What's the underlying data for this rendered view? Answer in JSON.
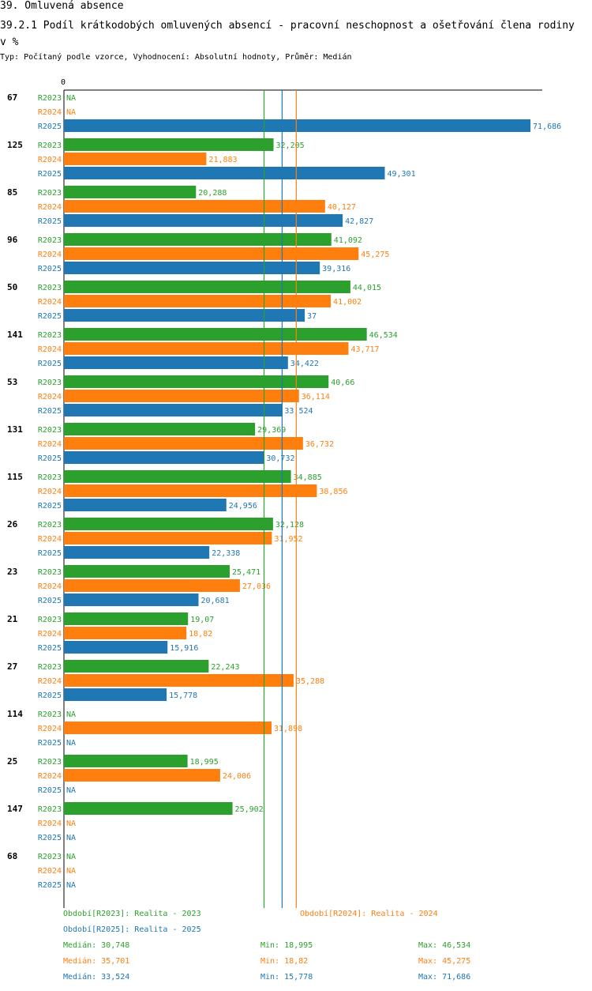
{
  "section_title": "39. Omluvená absence",
  "chart_title": "39.2.1 Podíl krátkodobých omluvených absencí -  pracovní neschopnost a ošetřování člena rodiny v %",
  "subtitle": "Typ: Počítaný podle vzorce, Vyhodnocení: Absolutní hodnoty, Průměr: Medián",
  "colors": {
    "R2023": "#2ca02c",
    "R2024": "#ff7f0e",
    "R2025": "#1f77b4"
  },
  "chart_data": {
    "type": "bar",
    "orientation": "horizontal",
    "axis_zero_label": "0",
    "xlim": [
      0,
      73.5
    ],
    "series_names": [
      "R2023",
      "R2024",
      "R2025"
    ],
    "categories": [
      "67",
      "125",
      "85",
      "96",
      "50",
      "141",
      "53",
      "131",
      "115",
      "26",
      "23",
      "21",
      "27",
      "114",
      "25",
      "147",
      "68"
    ],
    "series": [
      {
        "name": "R2023",
        "values": [
          null,
          32.205,
          20.288,
          41.092,
          44.015,
          46.534,
          40.66,
          29.369,
          34.885,
          32.128,
          25.471,
          19.07,
          22.243,
          null,
          18.995,
          25.902,
          null
        ],
        "labels": [
          "NA",
          "32,205",
          "20,288",
          "41,092",
          "44,015",
          "46,534",
          "40,66",
          "29,369",
          "34,885",
          "32,128",
          "25,471",
          "19,07",
          "22,243",
          "NA",
          "18,995",
          "25,902",
          "NA"
        ]
      },
      {
        "name": "R2024",
        "values": [
          null,
          21.883,
          40.127,
          45.275,
          41.002,
          43.717,
          36.114,
          36.732,
          38.856,
          31.952,
          27.036,
          18.82,
          35.288,
          31.898,
          24.006,
          null,
          null
        ],
        "labels": [
          "NA",
          "21,883",
          "40,127",
          "45,275",
          "41,002",
          "43,717",
          "36,114",
          "36,732",
          "38,856",
          "31,952",
          "27,036",
          "18,82",
          "35,288",
          "31,898",
          "24,006",
          "NA",
          "NA"
        ]
      },
      {
        "name": "R2025",
        "values": [
          71.686,
          49.301,
          42.827,
          39.316,
          37,
          34.422,
          33.524,
          30.732,
          24.956,
          22.338,
          20.681,
          15.916,
          15.778,
          null,
          null,
          null,
          null
        ],
        "labels": [
          "71,686",
          "49,301",
          "42,827",
          "39,316",
          "37",
          "34,422",
          "33,524",
          "30,732",
          "24,956",
          "22,338",
          "20,681",
          "15,916",
          "15,778",
          "NA",
          "NA",
          "NA",
          "NA"
        ]
      }
    ],
    "median_lines": {
      "R2023": 30.748,
      "R2024": 35.701,
      "R2025": 33.524
    }
  },
  "legend": {
    "period_2023": "Období[R2023]: Realita - 2023",
    "period_2024": "Období[R2024]: Realita - 2024",
    "period_2025": "Období[R2025]: Realita - 2025",
    "stats": [
      {
        "median": "Medián: 30,748",
        "min": "Min: 18,995",
        "max": "Max: 46,534"
      },
      {
        "median": "Medián: 35,701",
        "min": "Min: 18,82",
        "max": "Max: 45,275"
      },
      {
        "median": "Medián: 33,524",
        "min": "Min: 15,778",
        "max": "Max: 71,686"
      }
    ]
  }
}
